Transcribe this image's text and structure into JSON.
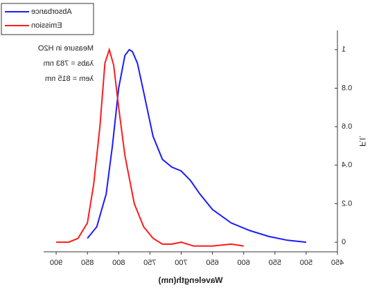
{
  "chart_data": {
    "type": "line",
    "x_label": "Wavelength(nm)",
    "y_label": "F.I.",
    "annotations": [
      "Measure in H2O",
      "λabs = 783 nm",
      "λem = 815 nm"
    ],
    "xlim": [
      450,
      920
    ],
    "xticks": [
      450,
      500,
      550,
      600,
      650,
      700,
      750,
      800,
      850,
      900
    ],
    "ylim": [
      -0.05,
      1.1
    ],
    "yticks": [
      0.0,
      0.2,
      0.4,
      0.6,
      0.8,
      1.0
    ],
    "mirrored": true,
    "series": [
      {
        "name": "Absorbance",
        "color": "#1a1aff",
        "x": [
          500,
          530,
          560,
          590,
          620,
          650,
          670,
          685,
          700,
          715,
          730,
          745,
          760,
          770,
          778,
          783,
          790,
          800,
          810,
          820,
          835,
          850
        ],
        "values": [
          0.0,
          0.01,
          0.03,
          0.06,
          0.1,
          0.17,
          0.25,
          0.32,
          0.37,
          0.39,
          0.43,
          0.55,
          0.78,
          0.93,
          0.99,
          1.0,
          0.97,
          0.8,
          0.5,
          0.25,
          0.08,
          0.02
        ]
      },
      {
        "name": "Emission",
        "color": "#ff1a1a",
        "x": [
          600,
          620,
          650,
          680,
          700,
          715,
          730,
          745,
          760,
          775,
          790,
          800,
          808,
          815,
          822,
          830,
          840,
          850,
          865,
          880,
          900
        ],
        "values": [
          -0.02,
          -0.01,
          -0.02,
          -0.02,
          0.0,
          -0.01,
          -0.01,
          0.02,
          0.08,
          0.2,
          0.45,
          0.7,
          0.92,
          1.0,
          0.93,
          0.6,
          0.3,
          0.1,
          0.02,
          0.0,
          0.0
        ]
      }
    ]
  }
}
